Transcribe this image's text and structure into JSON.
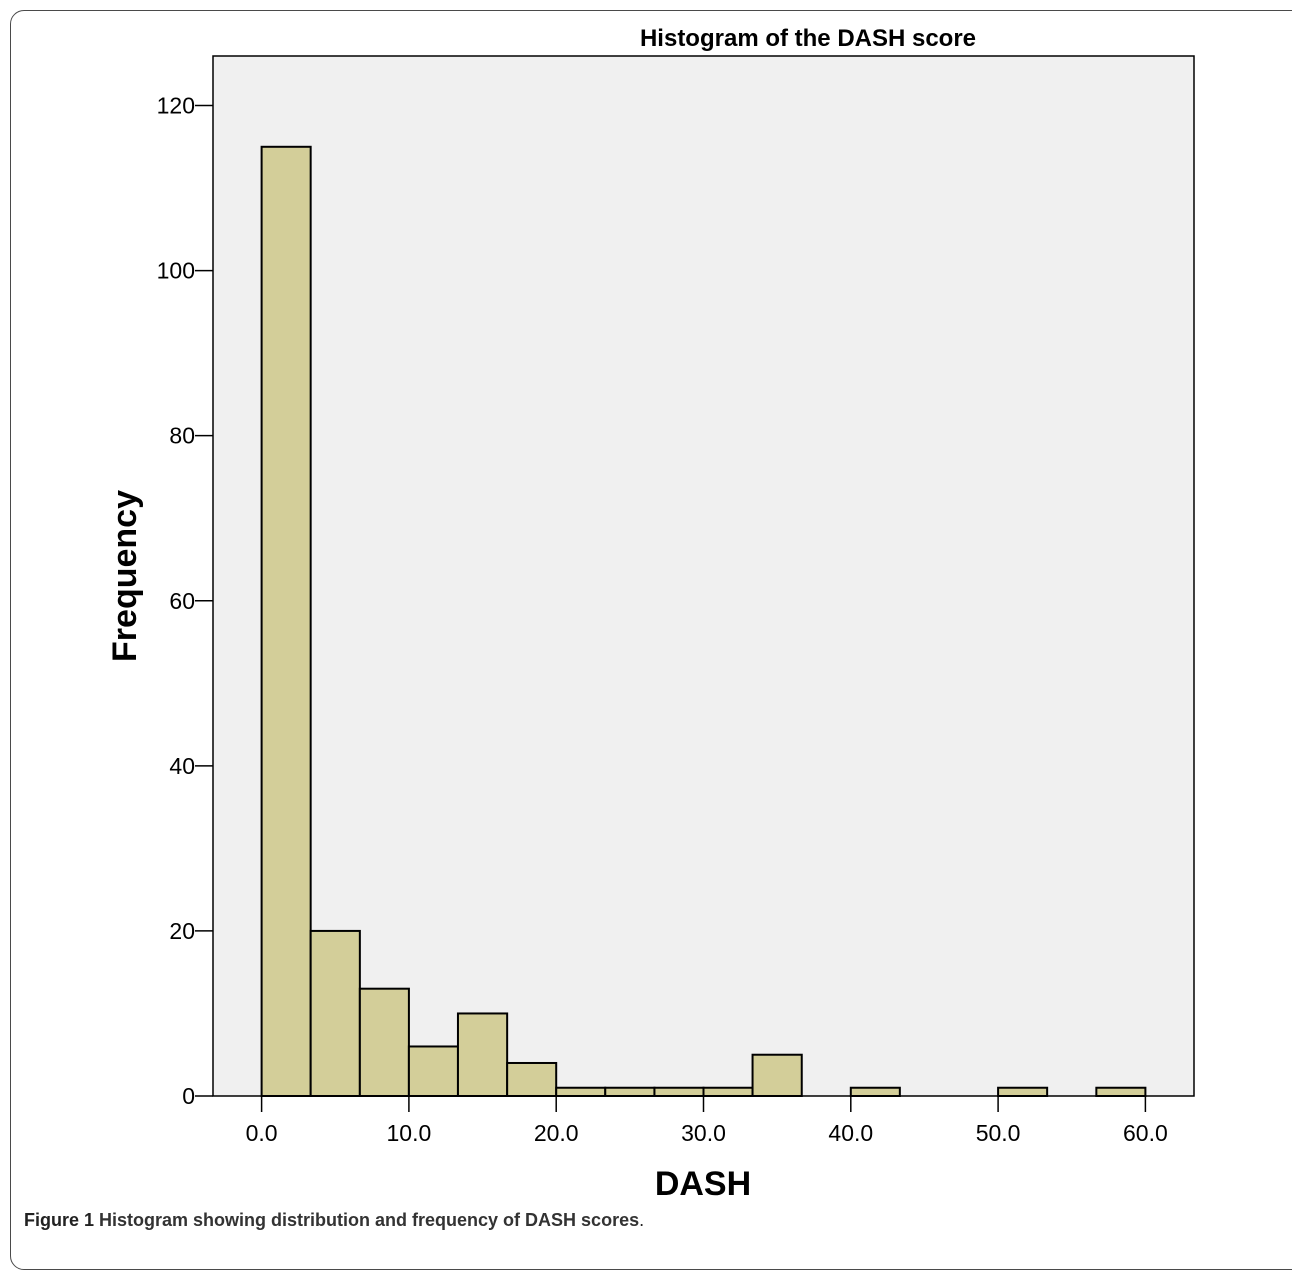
{
  "chart_data": {
    "type": "bar",
    "title": "Histogram of the DASH score",
    "xlabel": "DASH",
    "ylabel": "Frequency",
    "bin_width": 3.333,
    "bins": [
      {
        "start": 0.0,
        "end": 3.33,
        "count": 115
      },
      {
        "start": 3.33,
        "end": 6.67,
        "count": 20
      },
      {
        "start": 6.67,
        "end": 10.0,
        "count": 13
      },
      {
        "start": 10.0,
        "end": 13.33,
        "count": 6
      },
      {
        "start": 13.33,
        "end": 16.67,
        "count": 10
      },
      {
        "start": 16.67,
        "end": 20.0,
        "count": 4
      },
      {
        "start": 20.0,
        "end": 23.33,
        "count": 1
      },
      {
        "start": 23.33,
        "end": 26.67,
        "count": 1
      },
      {
        "start": 26.67,
        "end": 30.0,
        "count": 1
      },
      {
        "start": 30.0,
        "end": 33.33,
        "count": 1
      },
      {
        "start": 33.33,
        "end": 36.67,
        "count": 5
      },
      {
        "start": 40.0,
        "end": 43.33,
        "count": 1
      },
      {
        "start": 50.0,
        "end": 53.33,
        "count": 1
      },
      {
        "start": 56.67,
        "end": 60.0,
        "count": 1
      }
    ],
    "xlim": [
      -3.3,
      63.3
    ],
    "ylim": [
      0,
      126
    ],
    "x_ticks": [
      0,
      10,
      20,
      30,
      40,
      50,
      60
    ],
    "x_tick_labels": [
      "0.0",
      "10.0",
      "20.0",
      "30.0",
      "40.0",
      "50.0",
      "60.0"
    ],
    "y_ticks": [
      0,
      20,
      40,
      60,
      80,
      100,
      120
    ],
    "y_tick_labels": [
      "0",
      "20",
      "40",
      "60",
      "80",
      "100",
      "120"
    ],
    "grid": false,
    "colors": {
      "plot_background": "#f0f0f0",
      "bar_fill": "#d3ce99",
      "bar_stroke": "#000000",
      "axis": "#000000"
    }
  },
  "caption": {
    "label": "Figure 1",
    "text": "Histogram showing distribution and frequency of DASH scores",
    "end": "."
  }
}
